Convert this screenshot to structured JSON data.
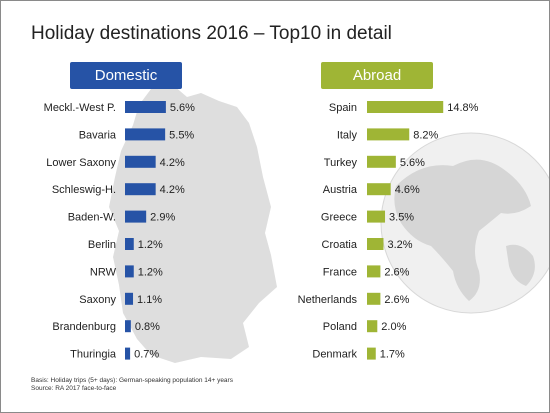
{
  "title": "Holiday destinations 2016 – Top10 in detail",
  "footnote": {
    "line1": "Basis: Holiday trips (5+ days): German-speaking population 14+ years",
    "line2": "Source: RA 2017 face-to-face"
  },
  "colors": {
    "domestic": "#2653a6",
    "abroad": "#9fb535",
    "map": "#dedede",
    "text": "#222222"
  },
  "chart_data": [
    {
      "type": "bar",
      "orientation": "horizontal",
      "header": "Domestic",
      "categories": [
        "Meckl.-West P.",
        "Bavaria",
        "Lower Saxony",
        "Schleswig-H.",
        "Baden-W.",
        "Berlin",
        "NRW",
        "Saxony",
        "Brandenburg",
        "Thuringia"
      ],
      "values": [
        5.6,
        5.5,
        4.2,
        4.2,
        2.9,
        1.2,
        1.2,
        1.1,
        0.8,
        0.7
      ],
      "labels": [
        "5.6%",
        "5.5%",
        "4.2%",
        "4.2%",
        "2.9%",
        "1.2%",
        "1.2%",
        "1.1%",
        "0.8%",
        "0.7%"
      ],
      "unit": "%",
      "background_map": "germany"
    },
    {
      "type": "bar",
      "orientation": "horizontal",
      "header": "Abroad",
      "categories": [
        "Spain",
        "Italy",
        "Turkey",
        "Austria",
        "Greece",
        "Croatia",
        "France",
        "Netherlands",
        "Poland",
        "Denmark"
      ],
      "values": [
        14.8,
        8.2,
        5.6,
        4.6,
        3.5,
        3.2,
        2.6,
        2.6,
        2.0,
        1.7
      ],
      "labels": [
        "14.8%",
        "8.2%",
        "5.6%",
        "4.6%",
        "3.5%",
        "3.2%",
        "2.6%",
        "2.6%",
        "2.0%",
        "1.7%"
      ],
      "unit": "%",
      "background_map": "globe"
    }
  ]
}
